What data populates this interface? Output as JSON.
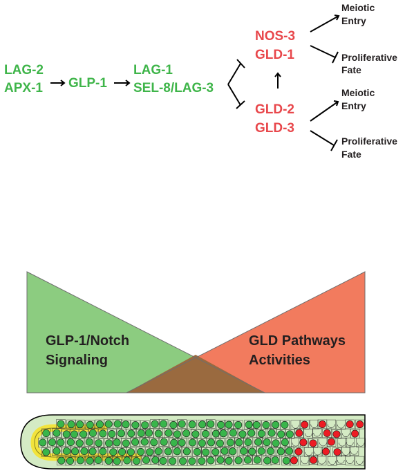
{
  "pathway": {
    "ligands": [
      "LAG-2",
      "APX-1"
    ],
    "receptor": "GLP-1",
    "effectors": [
      "LAG-1",
      "SEL-8/LAG-3"
    ],
    "gld_top": [
      "NOS-3",
      "GLD-1"
    ],
    "gld_bottom": [
      "GLD-2",
      "GLD-3"
    ],
    "out_top_1": [
      "Meiotic",
      "Entry"
    ],
    "out_top_2": [
      "Proliferative",
      "Fate"
    ],
    "out_bot_1": [
      "Meiotic",
      "Entry"
    ],
    "out_bot_2": [
      "Proliferative",
      "Fate"
    ]
  },
  "gradient": {
    "left_label": [
      "GLP-1/Notch",
      "Signaling"
    ],
    "right_label": [
      "GLD Pathways",
      "Activities"
    ]
  },
  "colors": {
    "green_text": "#3fb54a",
    "red_text": "#e8474b",
    "green_triangle": "#8ccc80",
    "red_triangle": "#f27b5e",
    "overlap": "#9a6a3f",
    "gonad_fill": "#d4ebc4",
    "cell_green": "#39b54a",
    "cell_red": "#ed1c24",
    "dtc_yellow": "#f2e33c"
  }
}
